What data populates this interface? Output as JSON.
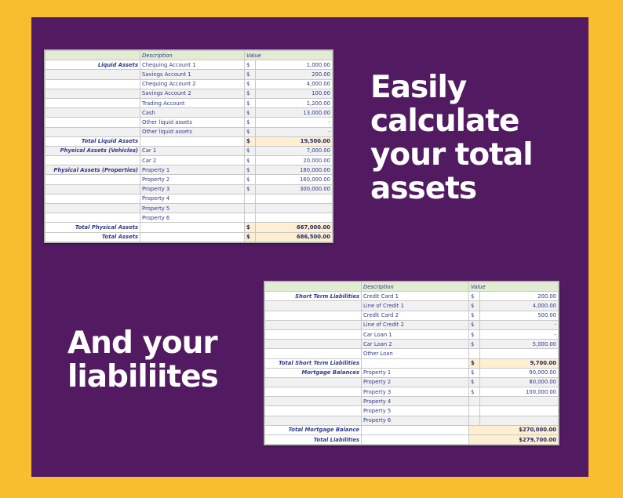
{
  "headline_assets": [
    "Easily",
    "calculate",
    "your total",
    "assets"
  ],
  "headline_liabilities": [
    "And your",
    "liabiliites"
  ],
  "assets": {
    "columns": {
      "description": "Description",
      "value": "Value"
    },
    "rows": [
      {
        "label": "Liquid Assets",
        "desc": "Chequing Account 1",
        "cur": "$",
        "val": "1,000.00"
      },
      {
        "label": "",
        "desc": "Savings Account 1",
        "cur": "$",
        "val": "200.00"
      },
      {
        "label": "",
        "desc": "Chequing Account 2",
        "cur": "$",
        "val": "4,000.00"
      },
      {
        "label": "",
        "desc": "Savings Account 2",
        "cur": "$",
        "val": "100.00"
      },
      {
        "label": "",
        "desc": "Trading Account",
        "cur": "$",
        "val": "1,200.00"
      },
      {
        "label": "",
        "desc": "Cash",
        "cur": "$",
        "val": "13,000.00"
      },
      {
        "label": "",
        "desc": "Other liquid assets",
        "cur": "$",
        "val": "-"
      },
      {
        "label": "",
        "desc": "Other liquid assets",
        "cur": "$",
        "val": "-"
      },
      {
        "label": "Total Liquid Assets",
        "desc": "",
        "cur": "$",
        "val": "19,500.00",
        "total": true
      },
      {
        "label": "Physical Assets (Vehicles)",
        "desc": "Car 1",
        "cur": "$",
        "val": "7,000.00"
      },
      {
        "label": "",
        "desc": "Car 2",
        "cur": "$",
        "val": "20,000.00"
      },
      {
        "label": "Physical Assets (Properties)",
        "desc": "Property 1",
        "cur": "$",
        "val": "180,000.00"
      },
      {
        "label": "",
        "desc": "Property 2",
        "cur": "$",
        "val": "160,000.00"
      },
      {
        "label": "",
        "desc": "Property 3",
        "cur": "$",
        "val": "300,000.00"
      },
      {
        "label": "",
        "desc": "Property 4",
        "cur": "",
        "val": ""
      },
      {
        "label": "",
        "desc": "Property 5",
        "cur": "",
        "val": ""
      },
      {
        "label": "",
        "desc": "Property 6",
        "cur": "",
        "val": ""
      },
      {
        "label": "Total Physical Assets",
        "desc": "",
        "cur": "$",
        "val": "667,000.00",
        "total": true
      },
      {
        "label": "Total Assets",
        "desc": "",
        "cur": "$",
        "val": "686,500.00",
        "total": true
      }
    ]
  },
  "liabilities": {
    "columns": {
      "description": "Description",
      "value": "Value"
    },
    "rows": [
      {
        "label": "Short Term Liabilities",
        "desc": "Credit Card 1",
        "cur": "$",
        "val": "200.00"
      },
      {
        "label": "",
        "desc": "Line of Credit 1",
        "cur": "$",
        "val": "4,000.00"
      },
      {
        "label": "",
        "desc": "Credit Card 2",
        "cur": "$",
        "val": "500.00"
      },
      {
        "label": "",
        "desc": "Line of Credit 2",
        "cur": "$",
        "val": "-"
      },
      {
        "label": "",
        "desc": "Car Loan 1",
        "cur": "$",
        "val": "-"
      },
      {
        "label": "",
        "desc": "Car Loan 2",
        "cur": "$",
        "val": "5,000.00"
      },
      {
        "label": "",
        "desc": "Other Loan",
        "cur": "",
        "val": ""
      },
      {
        "label": "Total Short Term Liabilities",
        "desc": "",
        "cur": "$",
        "val": "9,700.00",
        "total": true
      },
      {
        "label": "Mortgage Balances",
        "desc": "Property 1",
        "cur": "$",
        "val": "90,000.00"
      },
      {
        "label": "",
        "desc": "Property 2",
        "cur": "$",
        "val": "80,000.00"
      },
      {
        "label": "",
        "desc": "Property 3",
        "cur": "$",
        "val": "100,000.00"
      },
      {
        "label": "",
        "desc": "Property 4",
        "cur": "",
        "val": ""
      },
      {
        "label": "",
        "desc": "Property 5",
        "cur": "",
        "val": ""
      },
      {
        "label": "",
        "desc": "Property 6",
        "cur": "",
        "val": ""
      },
      {
        "label": "Total Mortgage Balance",
        "desc": "",
        "cur": "",
        "val": "$270,000.00",
        "total2": true
      },
      {
        "label": "Total Liabilities",
        "desc": "",
        "cur": "",
        "val": "$279,700.00",
        "total2": true
      }
    ]
  }
}
